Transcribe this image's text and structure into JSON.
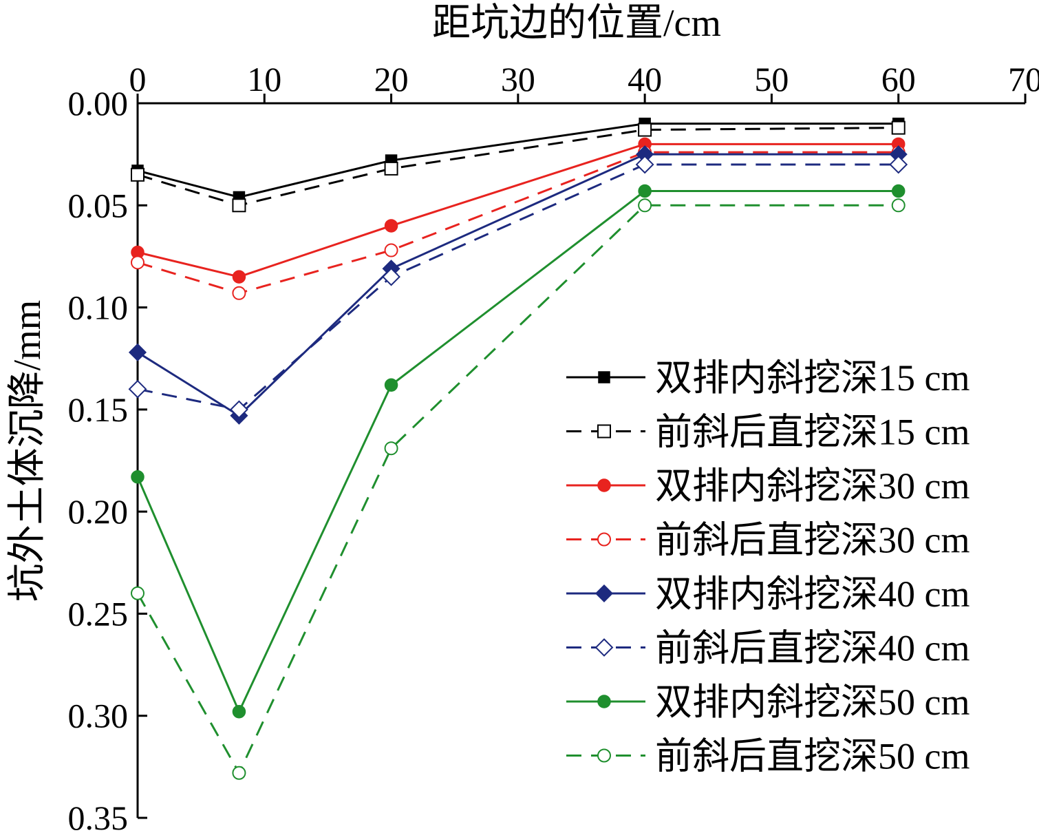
{
  "chart_data": {
    "type": "line",
    "xlabel": "距坑边的位置/cm",
    "ylabel": "坑外土体沉降/mm",
    "x_axis_position": "top",
    "y_axis_inverted": true,
    "xlim": [
      0,
      70
    ],
    "ylim": [
      0,
      0.35
    ],
    "xticks": [
      0,
      10,
      20,
      30,
      40,
      50,
      60,
      70
    ],
    "yticks": [
      0.0,
      0.05,
      0.1,
      0.15,
      0.2,
      0.25,
      0.3,
      0.35
    ],
    "ytick_labels": [
      "0.00",
      "0.05",
      "0.10",
      "0.15",
      "0.20",
      "0.25",
      "0.30",
      "0.35"
    ],
    "grid": false,
    "legend_position": "right",
    "x": [
      0,
      8,
      20,
      40,
      60
    ],
    "series": [
      {
        "name": "双排内斜挖深15 cm",
        "color": "#000000",
        "dash": false,
        "marker": "square",
        "filled": true,
        "values": [
          0.033,
          0.046,
          0.028,
          0.01,
          0.01
        ]
      },
      {
        "name": "前斜后直挖深15 cm",
        "color": "#000000",
        "dash": true,
        "marker": "square",
        "filled": false,
        "values": [
          0.035,
          0.05,
          0.032,
          0.013,
          0.012
        ]
      },
      {
        "name": "双排内斜挖深30 cm",
        "color": "#e8231f",
        "dash": false,
        "marker": "circle",
        "filled": true,
        "values": [
          0.073,
          0.085,
          0.06,
          0.02,
          0.02
        ]
      },
      {
        "name": "前斜后直挖深30 cm",
        "color": "#e8231f",
        "dash": true,
        "marker": "circle",
        "filled": false,
        "values": [
          0.078,
          0.093,
          0.072,
          0.024,
          0.024
        ]
      },
      {
        "name": "双排内斜挖深40 cm",
        "color": "#1d2a7f",
        "dash": false,
        "marker": "diamond",
        "filled": true,
        "values": [
          0.122,
          0.153,
          0.081,
          0.025,
          0.025
        ]
      },
      {
        "name": "前斜后直挖深40 cm",
        "color": "#1d2a7f",
        "dash": true,
        "marker": "diamond",
        "filled": false,
        "values": [
          0.14,
          0.15,
          0.085,
          0.03,
          0.03
        ]
      },
      {
        "name": "双排内斜挖深50 cm",
        "color": "#1f8f2e",
        "dash": false,
        "marker": "circle",
        "filled": true,
        "values": [
          0.183,
          0.298,
          0.138,
          0.043,
          0.043
        ]
      },
      {
        "name": "前斜后直挖深50 cm",
        "color": "#1f8f2e",
        "dash": true,
        "marker": "circle",
        "filled": false,
        "values": [
          0.24,
          0.328,
          0.169,
          0.05,
          0.05
        ]
      }
    ]
  }
}
